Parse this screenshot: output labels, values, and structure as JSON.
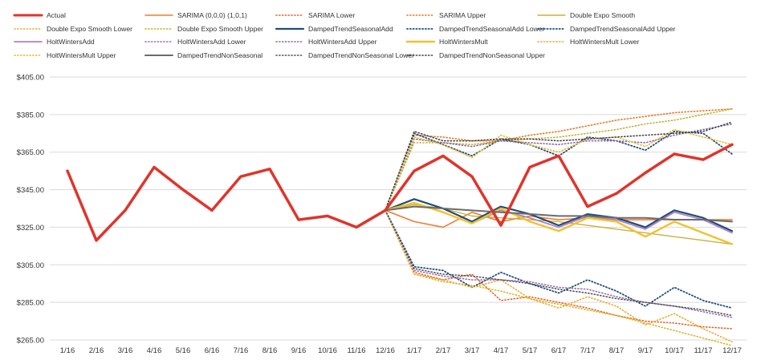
{
  "chart_data": {
    "type": "line",
    "title": "",
    "xlabel": "",
    "ylabel": "",
    "ylim": [
      265,
      405
    ],
    "ytick_labels": [
      "$265.00",
      "$285.00",
      "$305.00",
      "$325.00",
      "$345.00",
      "$365.00",
      "$385.00",
      "$405.00"
    ],
    "grid": true,
    "legend_position": "top",
    "categories": [
      "1/16",
      "2/16",
      "3/16",
      "4/16",
      "5/16",
      "6/16",
      "7/16",
      "8/16",
      "9/16",
      "10/16",
      "11/16",
      "12/16",
      "1/17",
      "2/17",
      "3/17",
      "4/17",
      "5/17",
      "6/17",
      "7/17",
      "8/17",
      "9/17",
      "10/17",
      "11/17",
      "12/17"
    ],
    "series": [
      {
        "name": "Actual",
        "color": "#e0342b",
        "style": "solid",
        "width": 3.5,
        "values": [
          355,
          318,
          334,
          357,
          345,
          334,
          352,
          356,
          329,
          331,
          325,
          334,
          355,
          363,
          352,
          326,
          357,
          363,
          336,
          343,
          354,
          364,
          361,
          369
        ]
      },
      {
        "name": "SARIMA (0,0,0) (1,0,1)",
        "color": "#ee7d31",
        "style": "solid",
        "width": 1.6,
        "values": [
          355,
          318,
          334,
          357,
          345,
          334,
          352,
          356,
          329,
          331,
          325,
          334,
          328,
          325,
          333,
          328,
          331,
          329,
          330,
          329,
          329,
          329,
          329,
          329
        ]
      },
      {
        "name": "SARIMA Lower",
        "color": "#e0652a",
        "style": "dotted",
        "width": 1.6,
        "values": [
          null,
          null,
          null,
          null,
          null,
          null,
          null,
          null,
          null,
          null,
          null,
          334,
          301,
          297,
          300,
          286,
          288,
          285,
          282,
          278,
          275,
          274,
          272,
          271
        ]
      },
      {
        "name": "SARIMA Upper",
        "color": "#e8781f",
        "style": "dotted",
        "width": 1.6,
        "values": [
          null,
          null,
          null,
          null,
          null,
          null,
          null,
          null,
          null,
          null,
          null,
          334,
          374,
          373,
          371,
          371,
          374,
          376,
          379,
          382,
          384,
          386,
          387,
          388
        ]
      },
      {
        "name": "Double Expo Smooth",
        "color": "#c9b23a",
        "style": "solid",
        "width": 1.4,
        "values": [
          355,
          318,
          334,
          357,
          345,
          334,
          352,
          356,
          329,
          331,
          325,
          334,
          337,
          335,
          331,
          330,
          329,
          328,
          326,
          324,
          322,
          320,
          318,
          316
        ]
      },
      {
        "name": "Double Expo Smooth Lower",
        "color": "#d6b82b",
        "style": "dotted",
        "width": 1.6,
        "values": [
          null,
          null,
          null,
          null,
          null,
          null,
          null,
          null,
          null,
          null,
          null,
          334,
          300,
          296,
          294,
          291,
          287,
          284,
          281,
          278,
          274,
          270,
          266,
          262
        ]
      },
      {
        "name": "Double Expo Smooth Upper",
        "color": "#c3b233",
        "style": "dotted",
        "width": 1.6,
        "values": [
          null,
          null,
          null,
          null,
          null,
          null,
          null,
          null,
          null,
          null,
          null,
          334,
          370,
          370,
          369,
          371,
          372,
          373,
          375,
          377,
          380,
          382,
          385,
          388
        ]
      },
      {
        "name": "DampedTrendSeasonalAdd",
        "color": "#1f4e79",
        "style": "solid",
        "width": 2.2,
        "values": [
          355,
          318,
          334,
          357,
          345,
          334,
          352,
          356,
          329,
          331,
          325,
          334,
          340,
          335,
          328,
          336,
          332,
          326,
          332,
          330,
          325,
          334,
          330,
          323
        ]
      },
      {
        "name": "DampedTrendSeasonalAdd Lower",
        "color": "#1f4e79",
        "style": "dotted",
        "width": 1.8,
        "values": [
          null,
          null,
          null,
          null,
          null,
          null,
          null,
          null,
          null,
          null,
          null,
          334,
          304,
          302,
          293,
          301,
          295,
          290,
          297,
          291,
          283,
          293,
          286,
          282
        ]
      },
      {
        "name": "DampedTrendSeasonalAdd Upper",
        "color": "#1f4e79",
        "style": "dotted",
        "width": 1.8,
        "values": [
          null,
          null,
          null,
          null,
          null,
          null,
          null,
          null,
          null,
          null,
          null,
          334,
          375,
          369,
          363,
          372,
          369,
          363,
          373,
          371,
          366,
          376,
          375,
          364
        ]
      },
      {
        "name": "HoltWintersAdd",
        "color": "#b07fc7",
        "style": "solid",
        "width": 1.8,
        "values": [
          355,
          318,
          334,
          357,
          345,
          334,
          352,
          356,
          329,
          331,
          325,
          334,
          338,
          333,
          327,
          334,
          330,
          325,
          331,
          329,
          324,
          333,
          329,
          322
        ]
      },
      {
        "name": "HoltWintersAdd Lower",
        "color": "#9a6fb3",
        "style": "dotted",
        "width": 1.6,
        "values": [
          null,
          null,
          null,
          null,
          null,
          null,
          null,
          null,
          null,
          null,
          null,
          334,
          302,
          299,
          297,
          297,
          296,
          293,
          292,
          288,
          285,
          283,
          280,
          277
        ]
      },
      {
        "name": "HoltWintersAdd Upper",
        "color": "#8b66a8",
        "style": "dotted",
        "width": 1.6,
        "values": [
          null,
          null,
          null,
          null,
          null,
          null,
          null,
          null,
          null,
          null,
          null,
          334,
          372,
          370,
          368,
          371,
          370,
          369,
          371,
          371,
          370,
          374,
          377,
          380
        ]
      },
      {
        "name": "HoltWintersMult",
        "color": "#f2c12e",
        "style": "solid",
        "width": 2.4,
        "values": [
          355,
          318,
          334,
          357,
          345,
          334,
          352,
          356,
          329,
          331,
          325,
          334,
          338,
          333,
          327,
          335,
          328,
          323,
          330,
          328,
          320,
          328,
          322,
          316
        ]
      },
      {
        "name": "HoltWintersMult Lower",
        "color": "#f0a830",
        "style": "dotted",
        "width": 1.6,
        "values": [
          null,
          null,
          null,
          null,
          null,
          null,
          null,
          null,
          null,
          null,
          null,
          334,
          300,
          297,
          293,
          297,
          287,
          282,
          288,
          283,
          273,
          279,
          271,
          264
        ]
      },
      {
        "name": "HoltWintersMult Upper",
        "color": "#e9b82a",
        "style": "dotted",
        "width": 1.6,
        "values": [
          null,
          null,
          null,
          null,
          null,
          null,
          null,
          null,
          null,
          null,
          null,
          334,
          373,
          369,
          362,
          374,
          369,
          365,
          372,
          373,
          368,
          377,
          373,
          369
        ]
      },
      {
        "name": "DampedTrendNonSeasonal",
        "color": "#6b6b6b",
        "style": "solid",
        "width": 2.0,
        "values": [
          355,
          318,
          334,
          357,
          345,
          334,
          352,
          356,
          329,
          331,
          325,
          334,
          336,
          335,
          334,
          333,
          332,
          331,
          331,
          330,
          330,
          329,
          329,
          328
        ]
      },
      {
        "name": "DampedTrendNonSeasonal Lower",
        "color": "#555555",
        "style": "dotted",
        "width": 1.6,
        "values": [
          null,
          null,
          null,
          null,
          null,
          null,
          null,
          null,
          null,
          null,
          null,
          334,
          303,
          300,
          299,
          297,
          295,
          292,
          290,
          287,
          285,
          283,
          281,
          278
        ]
      },
      {
        "name": "DampedTrendNonSeasonal Upper",
        "color": "#444444",
        "style": "dotted",
        "width": 1.6,
        "values": [
          null,
          null,
          null,
          null,
          null,
          null,
          null,
          null,
          null,
          null,
          null,
          334,
          376,
          371,
          371,
          372,
          372,
          371,
          372,
          373,
          374,
          375,
          376,
          381
        ]
      }
    ]
  }
}
